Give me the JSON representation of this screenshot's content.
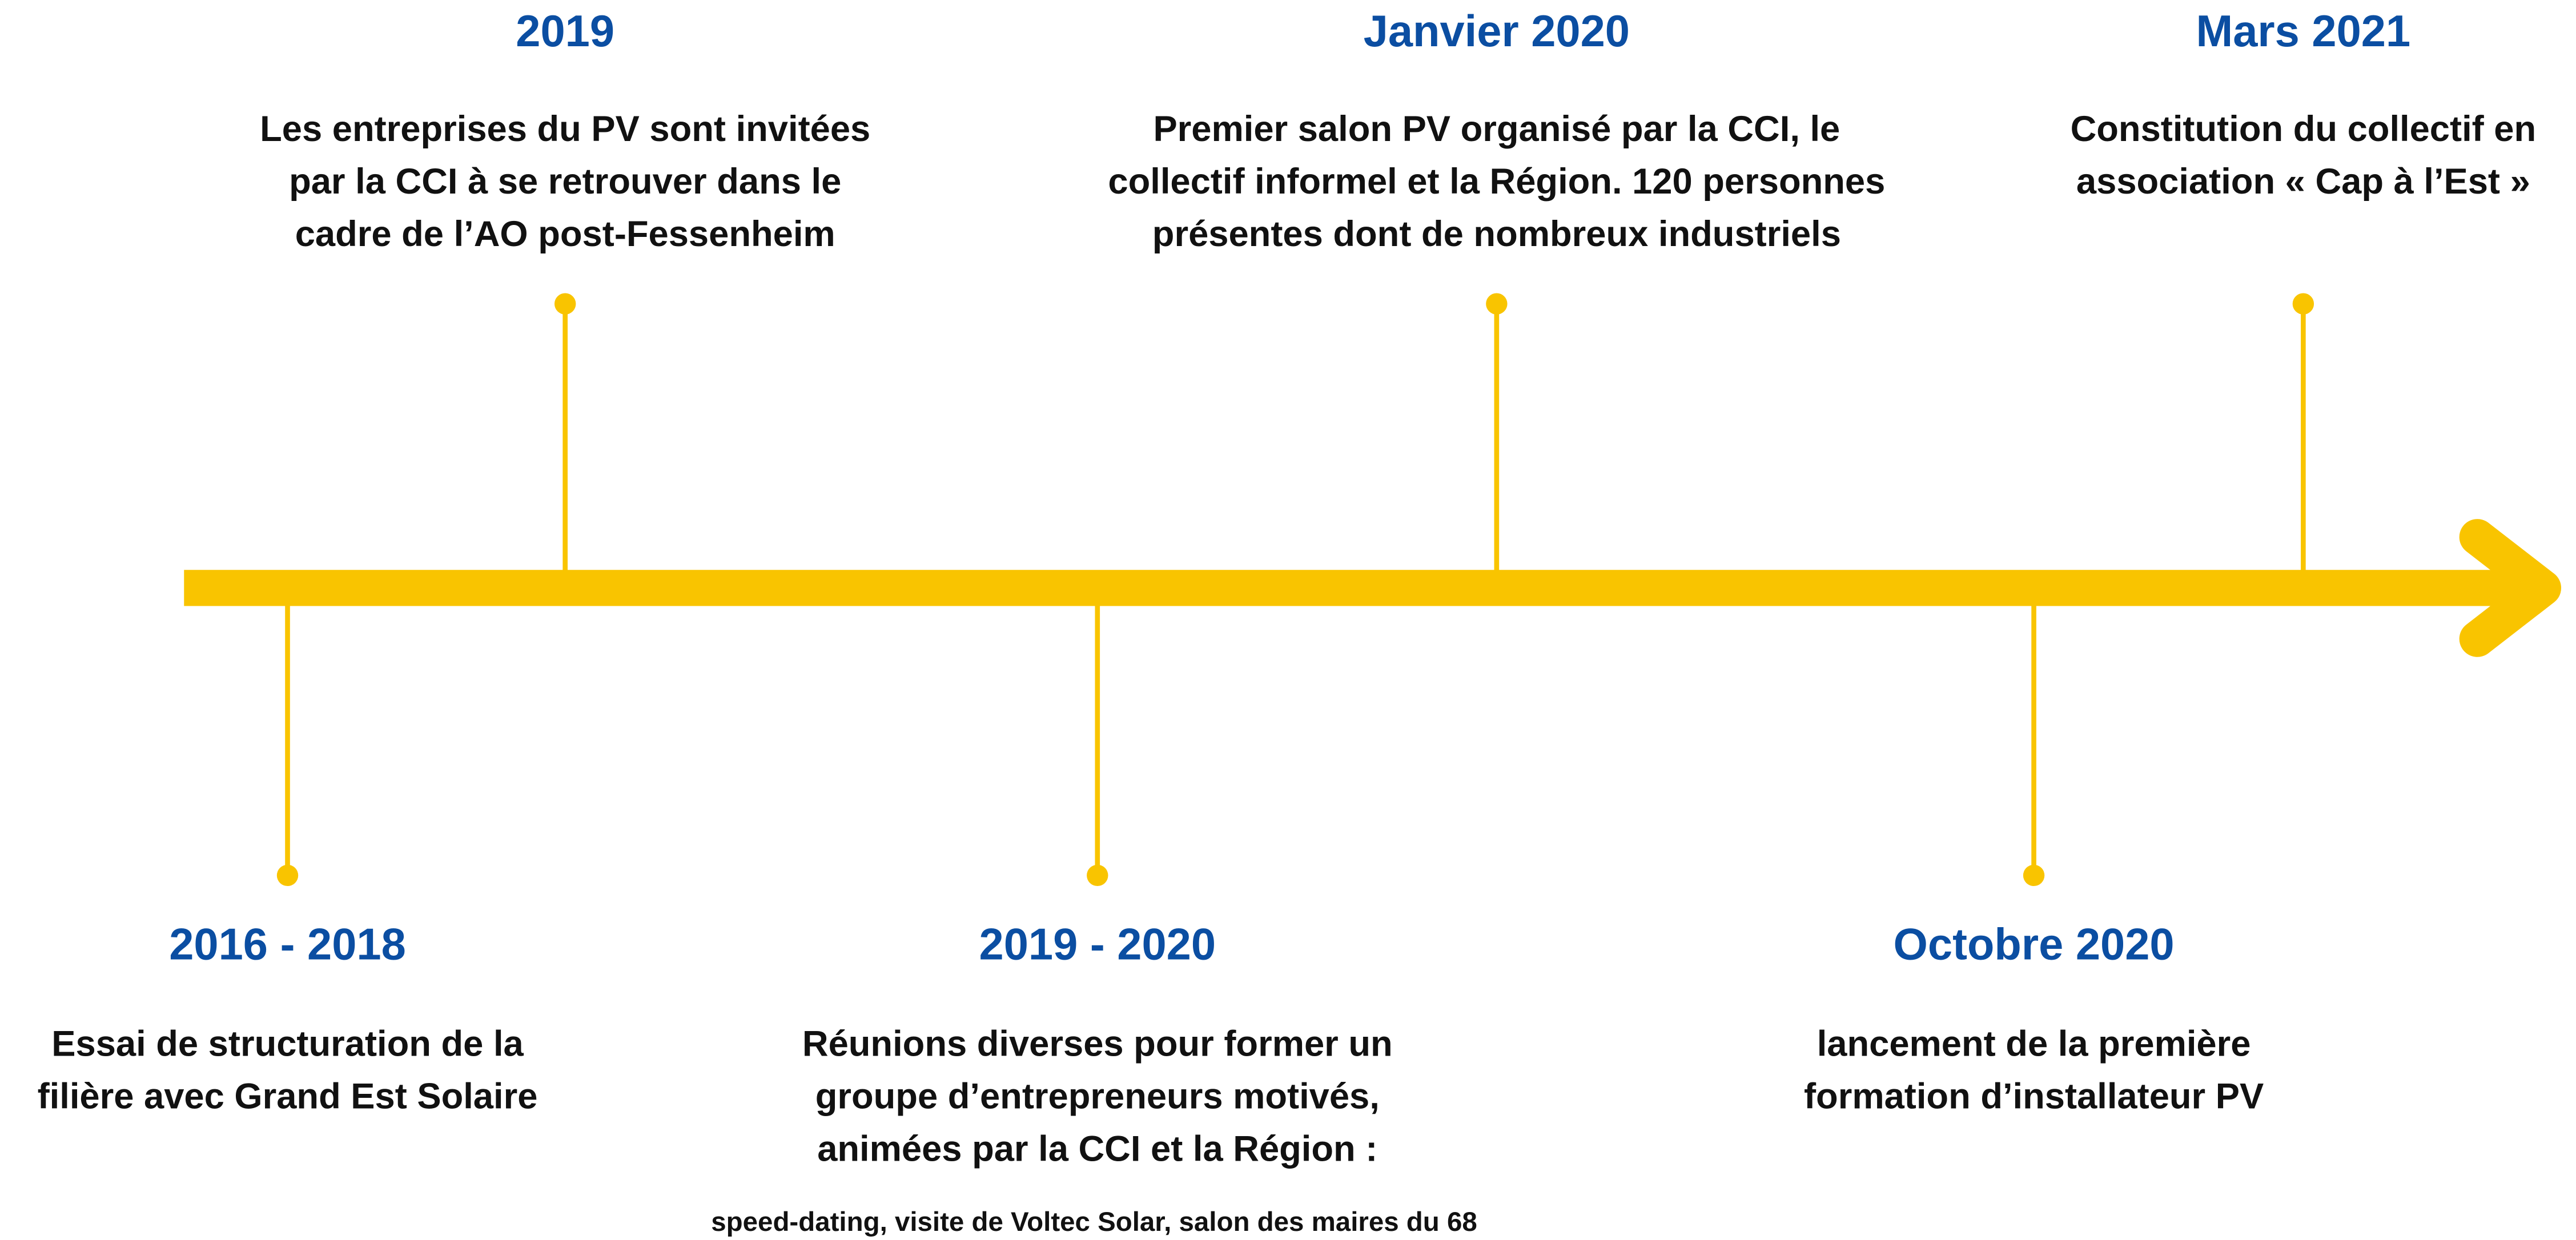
{
  "events": [
    {
      "position": "above",
      "date": "2019",
      "lines": [
        "Les entreprises du PV sont invitées",
        "par la CCI à se retrouver dans le",
        "cadre de l’AO post-Fessenheim"
      ]
    },
    {
      "position": "above",
      "date": "Janvier 2020",
      "lines": [
        "Premier salon PV organisé par la CCI, le",
        "collectif informel et la Région. 120 personnes",
        "présentes dont de nombreux industriels"
      ]
    },
    {
      "position": "above",
      "date": "Mars 2021",
      "lines": [
        "Constitution du collectif en",
        "association « Cap à l’Est »"
      ]
    },
    {
      "position": "below",
      "date": "2016 - 2018",
      "lines": [
        "Essai de structuration de la",
        "filière avec Grand Est Solaire"
      ]
    },
    {
      "position": "below",
      "date": "2019 - 2020",
      "lines": [
        "Réunions diverses pour former un",
        "groupe d’entrepreneurs motivés,",
        "animées par la CCI et la Région :"
      ],
      "note": "speed-dating, visite de Voltec Solar, salon des maires du 68"
    },
    {
      "position": "below",
      "date": "Octobre 2020",
      "lines": [
        "lancement de la première",
        "formation d’installateur PV"
      ]
    }
  ]
}
